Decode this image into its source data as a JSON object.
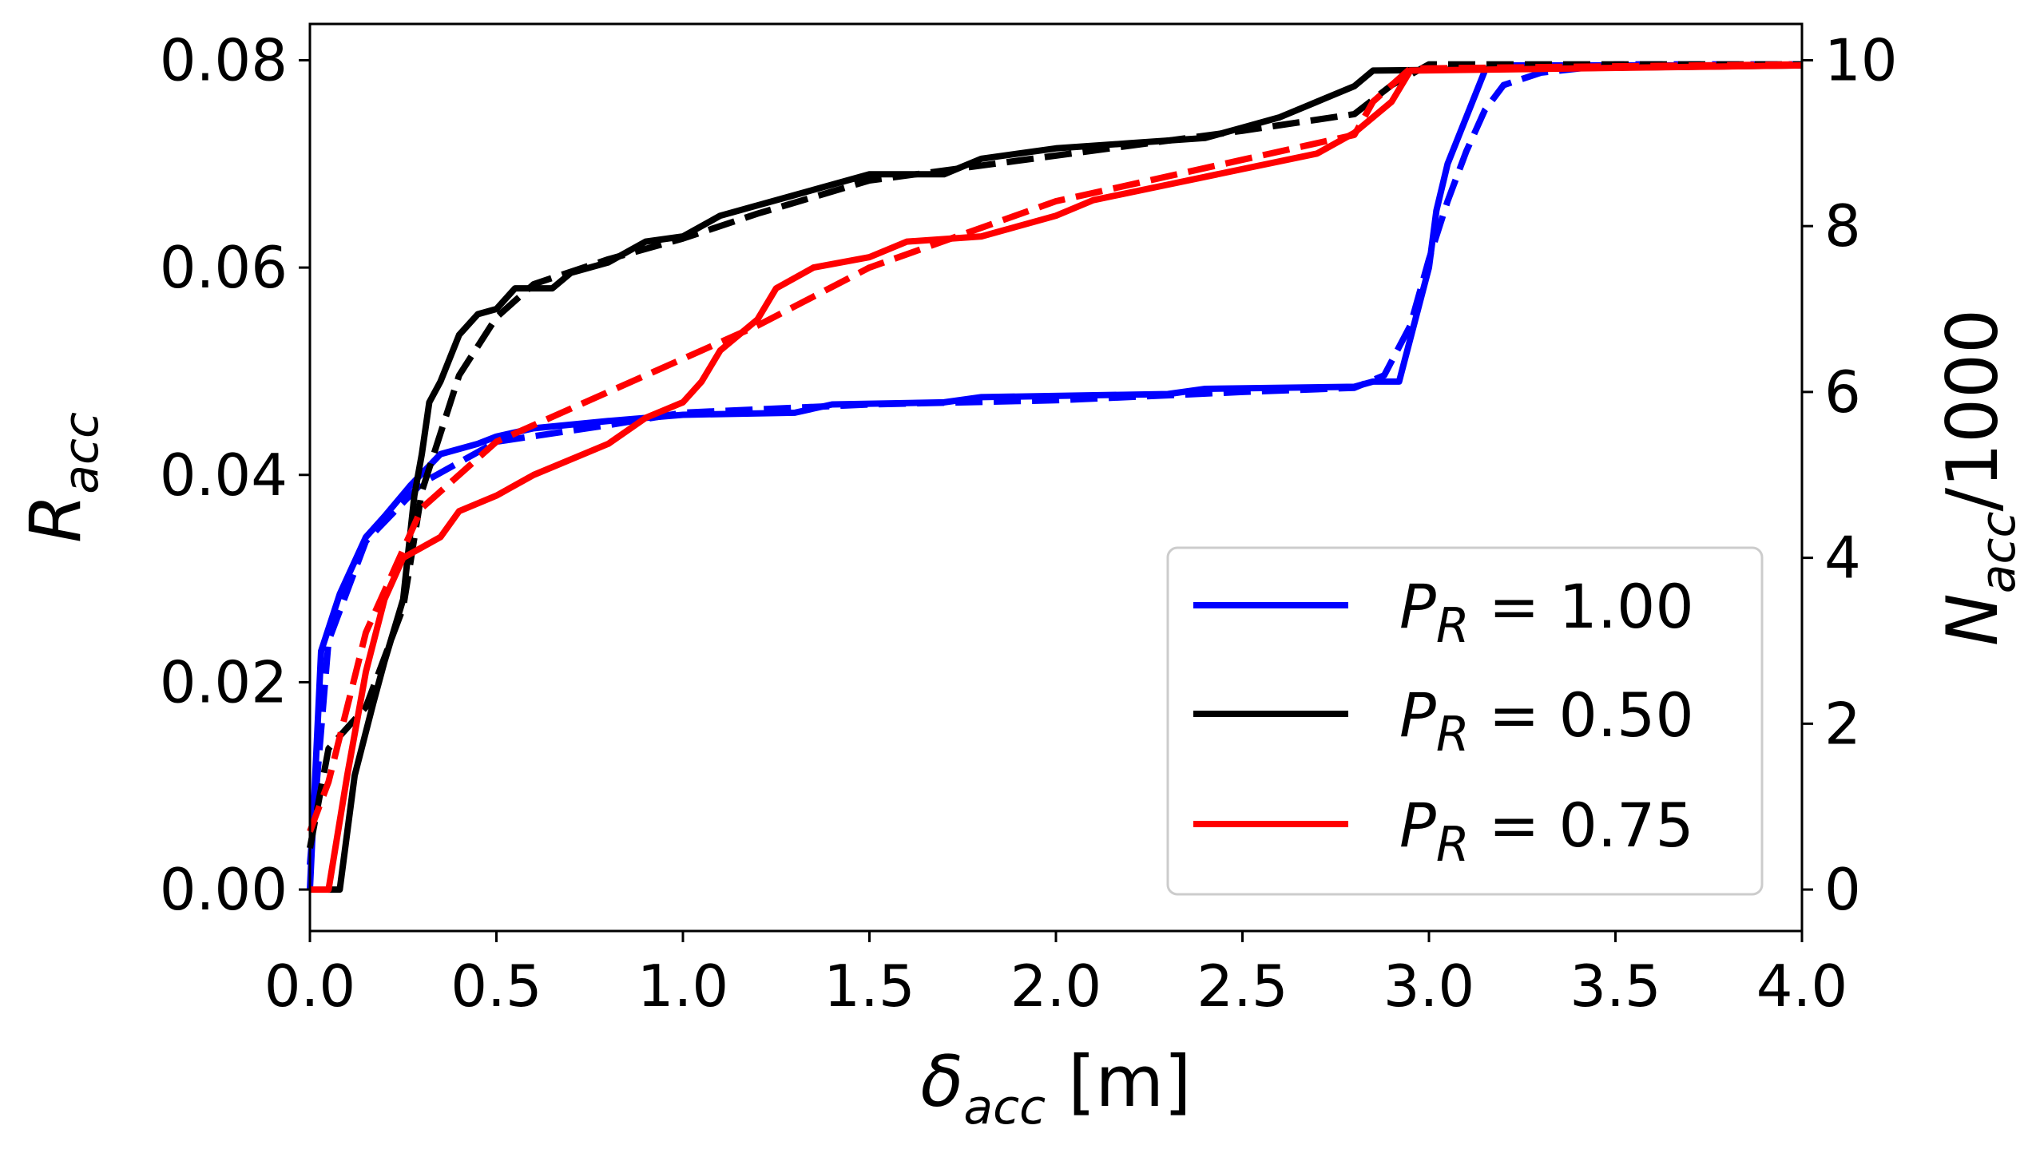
{
  "chart_data": {
    "type": "line",
    "xlabel": {
      "symbol": "δ",
      "sub": "acc",
      "unit": " [m]"
    },
    "ylabel_left": {
      "symbol": "R",
      "sub": "acc"
    },
    "ylabel_right": {
      "symbol": "N",
      "sub": "acc",
      "suffix": "/1000"
    },
    "xlim": [
      0.0,
      4.0
    ],
    "ylim_left": [
      -0.004,
      0.0835
    ],
    "ylim_right": [
      -0.5,
      10.4375
    ],
    "x_ticks": [
      "0.0",
      "0.5",
      "1.0",
      "1.5",
      "2.0",
      "2.5",
      "3.0",
      "3.5",
      "4.0"
    ],
    "y_left_ticks": [
      "0.00",
      "0.02",
      "0.04",
      "0.06",
      "0.08"
    ],
    "y_right_ticks": [
      "0",
      "2",
      "4",
      "6",
      "8",
      "10"
    ],
    "grid": false,
    "legend_position": "lower-right",
    "series": [
      {
        "name": "P_R = 1.00",
        "legend_label": {
          "symbol": "P",
          "sub": "R",
          "value": " = 1.00"
        },
        "color": "#0000ff",
        "solid_left_axis": [
          [
            0.0,
            0.0
          ],
          [
            0.03,
            0.023
          ],
          [
            0.08,
            0.0285
          ],
          [
            0.15,
            0.034
          ],
          [
            0.2,
            0.036
          ],
          [
            0.27,
            0.039
          ],
          [
            0.35,
            0.042
          ],
          [
            0.45,
            0.043
          ],
          [
            0.5,
            0.0437
          ],
          [
            0.6,
            0.0445
          ],
          [
            0.8,
            0.0452
          ],
          [
            1.0,
            0.0458
          ],
          [
            1.3,
            0.046
          ],
          [
            1.4,
            0.0468
          ],
          [
            1.7,
            0.047
          ],
          [
            1.8,
            0.0475
          ],
          [
            2.3,
            0.0478
          ],
          [
            2.4,
            0.0483
          ],
          [
            2.8,
            0.0485
          ],
          [
            2.85,
            0.049
          ],
          [
            2.92,
            0.049
          ],
          [
            3.0,
            0.06
          ],
          [
            3.02,
            0.0655
          ],
          [
            3.05,
            0.07
          ],
          [
            3.1,
            0.0745
          ],
          [
            3.15,
            0.079
          ],
          [
            3.17,
            0.0795
          ],
          [
            4.0,
            0.0795
          ]
        ],
        "dashed_right_axis": [
          [
            0.0,
            0.3
          ],
          [
            0.05,
            3.0
          ],
          [
            0.15,
            4.2
          ],
          [
            0.3,
            4.9
          ],
          [
            0.5,
            5.4
          ],
          [
            0.8,
            5.6
          ],
          [
            1.0,
            5.75
          ],
          [
            1.5,
            5.85
          ],
          [
            2.0,
            5.9
          ],
          [
            2.5,
            6.0
          ],
          [
            2.8,
            6.05
          ],
          [
            2.88,
            6.2
          ],
          [
            2.95,
            6.8
          ],
          [
            3.0,
            7.6
          ],
          [
            3.05,
            8.3
          ],
          [
            3.1,
            8.9
          ],
          [
            3.15,
            9.4
          ],
          [
            3.2,
            9.7
          ],
          [
            3.3,
            9.85
          ],
          [
            3.5,
            9.95
          ],
          [
            4.0,
            9.95
          ]
        ]
      },
      {
        "name": "P_R = 0.50",
        "legend_label": {
          "symbol": "P",
          "sub": "R",
          "value": " = 0.50"
        },
        "color": "#000000",
        "solid_left_axis": [
          [
            0.05,
            0.0
          ],
          [
            0.08,
            0.0
          ],
          [
            0.12,
            0.011
          ],
          [
            0.17,
            0.018
          ],
          [
            0.2,
            0.022
          ],
          [
            0.25,
            0.028
          ],
          [
            0.28,
            0.038
          ],
          [
            0.3,
            0.042
          ],
          [
            0.32,
            0.047
          ],
          [
            0.35,
            0.049
          ],
          [
            0.4,
            0.0535
          ],
          [
            0.45,
            0.0555
          ],
          [
            0.5,
            0.056
          ],
          [
            0.55,
            0.058
          ],
          [
            0.65,
            0.058
          ],
          [
            0.7,
            0.0595
          ],
          [
            0.8,
            0.0605
          ],
          [
            0.9,
            0.0625
          ],
          [
            1.0,
            0.063
          ],
          [
            1.1,
            0.065
          ],
          [
            1.2,
            0.066
          ],
          [
            1.3,
            0.067
          ],
          [
            1.4,
            0.068
          ],
          [
            1.5,
            0.069
          ],
          [
            1.7,
            0.069
          ],
          [
            1.8,
            0.0705
          ],
          [
            2.0,
            0.0715
          ],
          [
            2.2,
            0.072
          ],
          [
            2.4,
            0.0725
          ],
          [
            2.5,
            0.0735
          ],
          [
            2.6,
            0.0745
          ],
          [
            2.7,
            0.076
          ],
          [
            2.8,
            0.0775
          ],
          [
            2.85,
            0.079
          ],
          [
            4.0,
            0.0795
          ]
        ],
        "dashed_right_axis": [
          [
            0.0,
            0.5
          ],
          [
            0.05,
            1.7
          ],
          [
            0.15,
            2.2
          ],
          [
            0.25,
            3.4
          ],
          [
            0.3,
            4.8
          ],
          [
            0.4,
            6.2
          ],
          [
            0.5,
            6.9
          ],
          [
            0.6,
            7.3
          ],
          [
            0.8,
            7.6
          ],
          [
            1.0,
            7.85
          ],
          [
            1.2,
            8.15
          ],
          [
            1.5,
            8.55
          ],
          [
            2.0,
            8.85
          ],
          [
            2.5,
            9.15
          ],
          [
            2.8,
            9.35
          ],
          [
            2.9,
            9.7
          ],
          [
            3.0,
            9.95
          ],
          [
            4.0,
            9.95
          ]
        ]
      },
      {
        "name": "P_R = 0.75",
        "legend_label": {
          "symbol": "P",
          "sub": "R",
          "value": " = 0.75"
        },
        "color": "#ff0000",
        "solid_left_axis": [
          [
            0.0,
            0.0
          ],
          [
            0.05,
            0.0
          ],
          [
            0.1,
            0.011
          ],
          [
            0.15,
            0.021
          ],
          [
            0.2,
            0.028
          ],
          [
            0.25,
            0.032
          ],
          [
            0.35,
            0.034
          ],
          [
            0.4,
            0.0365
          ],
          [
            0.5,
            0.038
          ],
          [
            0.6,
            0.04
          ],
          [
            0.8,
            0.043
          ],
          [
            0.9,
            0.0455
          ],
          [
            1.0,
            0.047
          ],
          [
            1.05,
            0.049
          ],
          [
            1.1,
            0.052
          ],
          [
            1.2,
            0.055
          ],
          [
            1.25,
            0.058
          ],
          [
            1.35,
            0.06
          ],
          [
            1.5,
            0.061
          ],
          [
            1.6,
            0.0625
          ],
          [
            1.8,
            0.063
          ],
          [
            2.0,
            0.065
          ],
          [
            2.1,
            0.0665
          ],
          [
            2.3,
            0.068
          ],
          [
            2.5,
            0.0695
          ],
          [
            2.7,
            0.071
          ],
          [
            2.8,
            0.073
          ],
          [
            2.9,
            0.076
          ],
          [
            2.95,
            0.079
          ],
          [
            4.0,
            0.0795
          ]
        ],
        "dashed_right_axis": [
          [
            0.0,
            0.7
          ],
          [
            0.05,
            1.3
          ],
          [
            0.15,
            3.1
          ],
          [
            0.3,
            4.6
          ],
          [
            0.5,
            5.4
          ],
          [
            0.8,
            6.0
          ],
          [
            1.0,
            6.4
          ],
          [
            1.2,
            6.8
          ],
          [
            1.5,
            7.5
          ],
          [
            2.0,
            8.3
          ],
          [
            2.5,
            8.8
          ],
          [
            2.8,
            9.1
          ],
          [
            2.85,
            9.5
          ],
          [
            2.95,
            9.9
          ],
          [
            4.0,
            9.95
          ]
        ]
      }
    ]
  }
}
